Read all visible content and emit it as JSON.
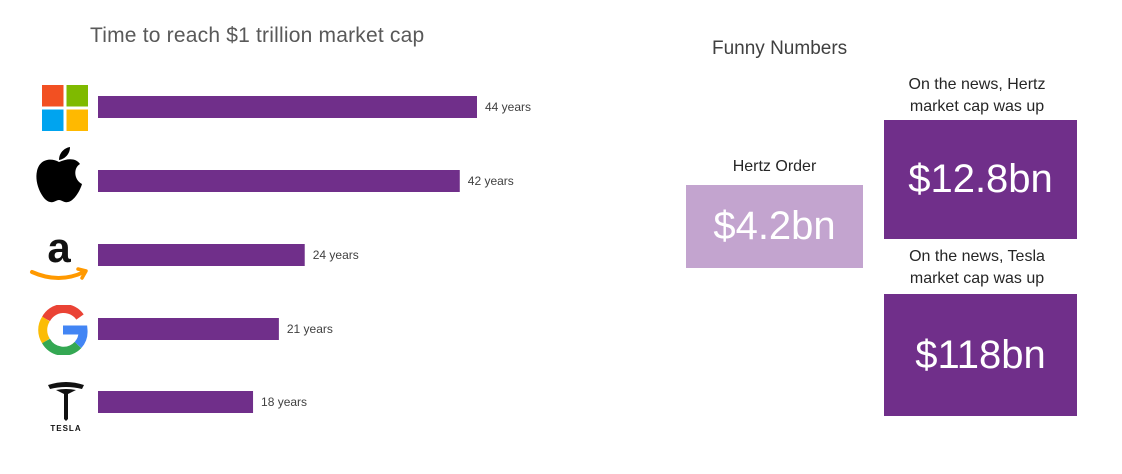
{
  "chart_data": {
    "type": "bar",
    "orientation": "horizontal",
    "title": "Time to reach $1 trillion market cap",
    "categories": [
      "Microsoft",
      "Apple",
      "Amazon",
      "Google",
      "Tesla"
    ],
    "values": [
      44,
      42,
      24,
      21,
      18
    ],
    "data_labels": [
      "44 years",
      "42 years",
      "24 years",
      "21 years",
      "18 years"
    ],
    "unit": "years",
    "xlim": [
      0,
      50
    ],
    "grid": false,
    "bar_color": "#702f8a"
  },
  "logos": {
    "microsoft": "microsoft-logo-icon",
    "apple": "apple-logo-icon",
    "amazon": "amazon-logo-icon",
    "google": "google-logo-icon",
    "tesla": "tesla-logo-icon"
  },
  "funny": {
    "title": "Funny Numbers",
    "hertz_order_label": "Hertz Order",
    "hertz_order_value": "$4.2bn",
    "hertz_caption_line1": "On the news, Hertz",
    "hertz_caption_line2": "market cap was up",
    "hertz_value": "$12.8bn",
    "tesla_caption_line1": "On the news, Tesla",
    "tesla_caption_line2": "market cap was up",
    "tesla_value": "$118bn",
    "colors": {
      "light": "#c3a4cf",
      "dark": "#702f8a"
    }
  }
}
